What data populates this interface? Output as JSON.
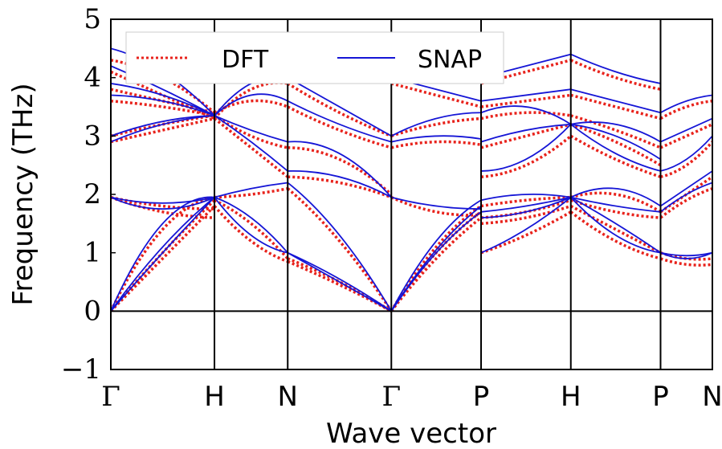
{
  "chart_data": {
    "type": "line",
    "xlabel": "Wave vector",
    "ylabel": "Frequency (THz)",
    "ylim": [
      -1,
      5
    ],
    "yticks": [
      -1,
      0,
      1,
      2,
      3,
      4,
      5
    ],
    "ytick_labels": [
      "−1",
      "0",
      "1",
      "2",
      "3",
      "4",
      "5"
    ],
    "high_symmetry_points": [
      {
        "label": "Γ",
        "x": 0.0
      },
      {
        "label": "H",
        "x": 1.0
      },
      {
        "label": "N",
        "x": 1.707
      },
      {
        "label": "Γ",
        "x": 2.707
      },
      {
        "label": "P",
        "x": 3.573
      },
      {
        "label": "H",
        "x": 4.439
      },
      {
        "label": "P",
        "x": 5.305
      },
      {
        "label": "N",
        "x": 5.805
      }
    ],
    "grid": false,
    "legend_placement": "top-left",
    "series": [
      {
        "name": "DFT",
        "color": "#e8231c",
        "style": "dotted",
        "segments": [
          {
            "from": 0,
            "to": 1,
            "bands": [
              [
                0,
                0.9,
                1.8
              ],
              [
                0,
                1.0,
                1.9
              ],
              [
                0,
                1.4,
                1.95
              ],
              [
                1.95,
                1.8,
                1.75
              ],
              [
                1.95,
                1.7,
                1.6
              ],
              [
                2.9,
                3.1,
                3.3
              ],
              [
                3.0,
                3.2,
                3.35
              ],
              [
                3.6,
                3.5,
                3.35
              ],
              [
                3.8,
                3.6,
                3.4
              ],
              [
                4.1,
                3.7,
                3.3
              ],
              [
                4.3,
                4.0,
                3.4
              ]
            ]
          },
          {
            "from": 1,
            "to": 2,
            "bands": [
              [
                1.8,
                1.2,
                0.85
              ],
              [
                1.9,
                1.5,
                0.9
              ],
              [
                1.95,
                2.0,
                2.1
              ],
              [
                3.3,
                2.8,
                2.3
              ],
              [
                3.35,
                3.0,
                2.8
              ],
              [
                3.4,
                3.6,
                3.5
              ],
              [
                3.3,
                3.8,
                3.9
              ]
            ]
          },
          {
            "from": 2,
            "to": 3,
            "bands": [
              [
                0.85,
                0.45,
                0.0
              ],
              [
                0.9,
                0.5,
                0.0
              ],
              [
                2.1,
                1.2,
                0.0
              ],
              [
                2.3,
                2.2,
                1.95
              ],
              [
                2.8,
                2.6,
                2.0
              ],
              [
                3.5,
                3.1,
                2.8
              ],
              [
                3.9,
                3.4,
                3.0
              ]
            ]
          },
          {
            "from": 3,
            "to": 4,
            "bands": [
              [
                0.0,
                0.9,
                1.6
              ],
              [
                0.0,
                1.0,
                1.7
              ],
              [
                0.0,
                1.1,
                1.8
              ],
              [
                1.95,
                1.7,
                1.65
              ],
              [
                2.8,
                2.9,
                2.85
              ],
              [
                3.0,
                3.2,
                3.3
              ],
              [
                3.9,
                3.7,
                3.5
              ]
            ]
          },
          {
            "from": 4,
            "to": 5,
            "bands": [
              [
                1.0,
                1.3,
                1.7
              ],
              [
                1.5,
                1.6,
                1.8
              ],
              [
                1.6,
                1.7,
                1.9
              ],
              [
                1.8,
                1.9,
                1.95
              ],
              [
                2.3,
                2.5,
                3.0
              ],
              [
                2.8,
                3.0,
                3.2
              ],
              [
                3.3,
                3.4,
                3.35
              ],
              [
                3.5,
                3.6,
                3.7
              ],
              [
                3.9,
                4.1,
                4.3
              ]
            ]
          },
          {
            "from": 5,
            "to": 6,
            "bands": [
              [
                1.7,
                1.2,
                0.9
              ],
              [
                1.8,
                1.4,
                1.0
              ],
              [
                1.9,
                1.7,
                1.6
              ],
              [
                1.95,
                2.0,
                1.7
              ],
              [
                3.0,
                2.6,
                2.3
              ],
              [
                3.2,
                2.9,
                2.5
              ],
              [
                3.35,
                3.1,
                2.8
              ],
              [
                3.7,
                3.5,
                3.3
              ],
              [
                4.3,
                4.0,
                3.8
              ]
            ]
          },
          {
            "from": 6,
            "to": 7,
            "bands": [
              [
                0.9,
                0.8,
                0.8
              ],
              [
                1.0,
                0.9,
                0.9
              ],
              [
                1.6,
                1.9,
                2.1
              ],
              [
                1.7,
                2.0,
                2.3
              ],
              [
                2.3,
                2.5,
                2.9
              ],
              [
                2.8,
                3.0,
                3.2
              ],
              [
                3.3,
                3.5,
                3.6
              ]
            ]
          }
        ]
      },
      {
        "name": "SNAP",
        "color": "#1515d6",
        "style": "solid",
        "segments": [
          {
            "from": 0,
            "to": 1,
            "bands": [
              [
                0,
                1.0,
                1.95
              ],
              [
                0,
                1.1,
                1.95
              ],
              [
                0,
                1.5,
                1.95
              ],
              [
                1.95,
                1.85,
                1.95
              ],
              [
                1.95,
                1.75,
                1.95
              ],
              [
                2.9,
                3.2,
                3.35
              ],
              [
                3.0,
                3.25,
                3.35
              ],
              [
                3.7,
                3.6,
                3.35
              ],
              [
                3.9,
                3.7,
                3.35
              ],
              [
                4.2,
                3.8,
                3.35
              ],
              [
                4.5,
                4.1,
                3.35
              ]
            ]
          },
          {
            "from": 1,
            "to": 2,
            "bands": [
              [
                1.95,
                1.3,
                1.0
              ],
              [
                1.95,
                1.6,
                1.0
              ],
              [
                1.95,
                2.1,
                2.2
              ],
              [
                3.35,
                2.9,
                2.4
              ],
              [
                3.35,
                3.1,
                2.9
              ],
              [
                3.35,
                3.7,
                3.6
              ],
              [
                3.35,
                3.9,
                4.0
              ]
            ]
          },
          {
            "from": 2,
            "to": 3,
            "bands": [
              [
                1.0,
                0.5,
                0.0
              ],
              [
                1.0,
                0.55,
                0.0
              ],
              [
                2.2,
                1.3,
                0.0
              ],
              [
                2.4,
                2.3,
                1.95
              ],
              [
                2.9,
                2.7,
                1.95
              ],
              [
                3.6,
                3.2,
                2.9
              ],
              [
                4.0,
                3.5,
                3.0
              ]
            ]
          },
          {
            "from": 3,
            "to": 4,
            "bands": [
              [
                0.0,
                1.0,
                1.7
              ],
              [
                0.0,
                1.05,
                1.8
              ],
              [
                0.0,
                1.2,
                1.9
              ],
              [
                1.95,
                1.8,
                1.75
              ],
              [
                2.9,
                3.0,
                2.95
              ],
              [
                3.0,
                3.3,
                3.4
              ],
              [
                4.0,
                3.8,
                3.6
              ]
            ]
          },
          {
            "from": 4,
            "to": 5,
            "bands": [
              [
                1.0,
                1.4,
                1.95
              ],
              [
                1.6,
                1.7,
                1.95
              ],
              [
                1.7,
                1.8,
                1.95
              ],
              [
                1.9,
                2.0,
                1.95
              ],
              [
                2.4,
                2.6,
                3.2
              ],
              [
                2.9,
                3.1,
                3.2
              ],
              [
                3.4,
                3.5,
                3.2
              ],
              [
                3.6,
                3.7,
                3.8
              ],
              [
                4.0,
                4.2,
                4.4
              ]
            ]
          },
          {
            "from": 5,
            "to": 6,
            "bands": [
              [
                1.95,
                1.3,
                1.0
              ],
              [
                1.95,
                1.5,
                1.0
              ],
              [
                1.95,
                1.8,
                1.7
              ],
              [
                1.95,
                2.1,
                1.8
              ],
              [
                3.2,
                2.7,
                2.4
              ],
              [
                3.2,
                3.0,
                2.6
              ],
              [
                3.2,
                3.2,
                2.9
              ],
              [
                3.8,
                3.6,
                3.4
              ],
              [
                4.4,
                4.1,
                3.9
              ]
            ]
          },
          {
            "from": 6,
            "to": 7,
            "bands": [
              [
                1.0,
                0.9,
                1.0
              ],
              [
                1.0,
                0.95,
                1.0
              ],
              [
                1.7,
                2.0,
                2.2
              ],
              [
                1.8,
                2.1,
                2.4
              ],
              [
                2.4,
                2.6,
                3.0
              ],
              [
                2.9,
                3.1,
                3.3
              ],
              [
                3.4,
                3.6,
                3.7
              ]
            ]
          }
        ]
      }
    ]
  }
}
